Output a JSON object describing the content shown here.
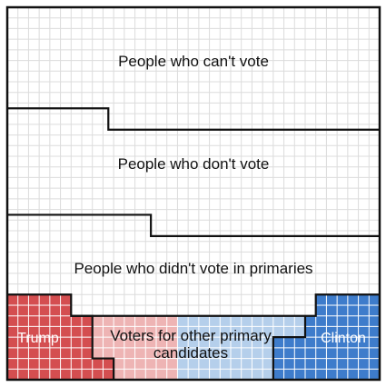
{
  "chart_data": {
    "type": "waffle",
    "grid": {
      "columns": 35,
      "rows": 35,
      "gridlines": true
    },
    "regions": [
      {
        "key": "cant_vote",
        "label": "People who can't vote",
        "color": "#ffffff"
      },
      {
        "key": "dont_vote",
        "label": "People who don't vote",
        "color": "#ffffff"
      },
      {
        "key": "no_primary",
        "label": "People who didn't vote in primaries",
        "color": "#ffffff"
      },
      {
        "key": "trump",
        "label": "Trump",
        "color": "#d44e50"
      },
      {
        "key": "other_rep",
        "label": "",
        "color": "#eeb4b4"
      },
      {
        "key": "other_dem",
        "label": "",
        "color": "#b5cfeb"
      },
      {
        "key": "clinton",
        "label": "Clinton",
        "color": "#3e7ccb"
      },
      {
        "key": "other_combined",
        "label": "Voters for other primary candidates",
        "color": ""
      }
    ],
    "colors": {
      "grid_on_white": "#dcdcdc",
      "grid_on_color": "#ffffff",
      "outline": "#111111"
    }
  }
}
